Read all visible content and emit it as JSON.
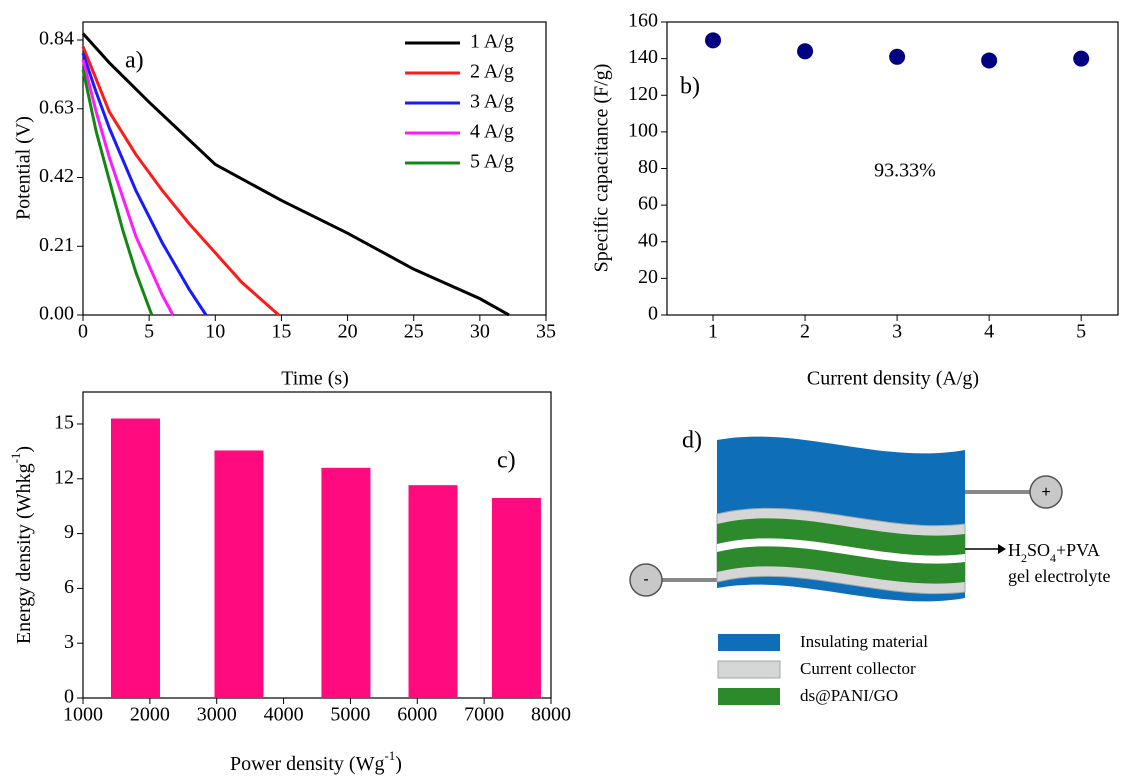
{
  "chart_data": [
    {
      "type": "line",
      "annotation": "a)",
      "x_label": "Time (s)",
      "y_label": "Potential (V)",
      "xlim": [
        0,
        35
      ],
      "ylim": [
        0,
        0.895
      ],
      "xticks": [
        0,
        5,
        10,
        15,
        20,
        25,
        30,
        35
      ],
      "yticks": [
        {
          "value": 0,
          "label": "0.00"
        },
        0.21,
        0.42,
        0.63,
        0.84
      ],
      "series": [
        {
          "name": "1 A/g",
          "color": "#000000",
          "x": [
            0,
            2,
            5,
            10,
            15,
            20,
            25,
            30,
            32.2
          ],
          "values": [
            0.86,
            0.77,
            0.65,
            0.46,
            0.35,
            0.25,
            0.14,
            0.05,
            0
          ]
        },
        {
          "name": "2 A/g",
          "color": "#ff1a1a",
          "x": [
            0,
            2,
            4,
            6,
            8,
            10,
            12,
            14.8
          ],
          "values": [
            0.82,
            0.62,
            0.49,
            0.38,
            0.28,
            0.19,
            0.1,
            0
          ]
        },
        {
          "name": "3 A/g",
          "color": "#1a1aff",
          "x": [
            0,
            1,
            2,
            4,
            6,
            8,
            9.3
          ],
          "values": [
            0.8,
            0.68,
            0.57,
            0.38,
            0.22,
            0.08,
            0
          ]
        },
        {
          "name": "4 A/g",
          "color": "#ff1aff",
          "x": [
            0,
            1,
            2,
            4,
            6,
            6.8
          ],
          "values": [
            0.78,
            0.62,
            0.48,
            0.24,
            0.06,
            0
          ]
        },
        {
          "name": "5 A/g",
          "color": "#118811",
          "x": [
            0,
            1,
            2,
            3,
            4,
            5.2
          ],
          "values": [
            0.75,
            0.56,
            0.41,
            0.26,
            0.13,
            0
          ]
        }
      ]
    },
    {
      "type": "scatter",
      "annotations": [
        "b)",
        "93.33%"
      ],
      "x_label": "Current density (A/g)",
      "y_label": "Specific capacitance (F/g)",
      "xlim": [
        0.5,
        5.4
      ],
      "ylim": [
        0,
        160
      ],
      "xticks": [
        1,
        2,
        3,
        4,
        5
      ],
      "yticks": [
        0,
        20,
        40,
        60,
        80,
        100,
        120,
        140,
        160
      ],
      "color": "#000080",
      "x": [
        1,
        2,
        3,
        4,
        5
      ],
      "values": [
        150,
        144,
        141,
        139,
        140
      ]
    },
    {
      "type": "bar",
      "annotation": "c)",
      "x_label": [
        "Power density (Wg",
        "-1",
        ")"
      ],
      "y_label": [
        "Energy density (Whkg",
        "-1",
        ")"
      ],
      "xlim": [
        1000,
        8000
      ],
      "ylim": [
        0,
        16.75
      ],
      "xticks": [
        1000,
        2000,
        3000,
        4000,
        5000,
        6000,
        7000,
        8000
      ],
      "yticks": [
        0,
        3,
        6,
        9,
        12,
        15
      ],
      "color": "#ff0a7f",
      "x": [
        1785,
        3333,
        4933,
        6235,
        7483
      ],
      "values": [
        15.3,
        13.55,
        12.6,
        11.65,
        10.95
      ]
    }
  ],
  "diagram": {
    "label": "d)",
    "positive": "+",
    "negative": "-",
    "electrolyte": [
      "H",
      "2",
      "SO",
      "4",
      "+PVA"
    ],
    "electrolyte_note": "gel electrolyte",
    "legend": [
      "Insulating material",
      "Current collector",
      "ds@PANI/GO"
    ]
  }
}
